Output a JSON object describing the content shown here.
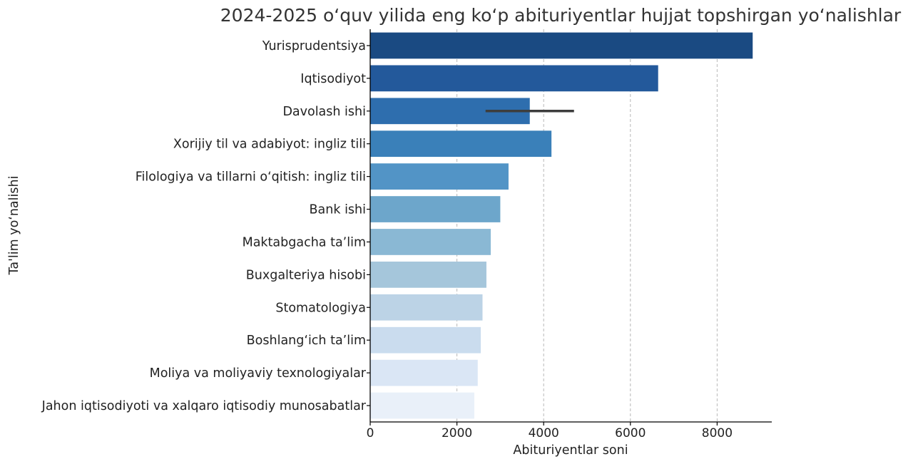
{
  "chart_data": {
    "type": "bar",
    "orientation": "horizontal",
    "title": "2024-2025 o‘quv yilida eng ko‘p abituriyentlar hujjat topshirgan yo‘nalishlar",
    "xlabel": "Abituriyentlar soni",
    "ylabel": "Ta'lim yo‘nalishi",
    "xlim": [
      0,
      9260
    ],
    "xticks": [
      0,
      2000,
      4000,
      6000,
      8000
    ],
    "xtick_labels": [
      "0",
      "2000",
      "4000",
      "6000",
      "8000"
    ],
    "grid": "x dashed",
    "categories": [
      "Yurisprudentsiya",
      "Iqtisodiyot",
      "Davolash ishi",
      "Xorijiy til va adabiyot: ingliz tili",
      "Filologiya va tillarni o‘qitish: ingliz tili",
      "Bank ishi",
      "Maktabgacha ta’lim",
      "Buxgalteriya hisobi",
      "Stomatologiya",
      "Boshlang‘ich ta’lim",
      "Moliya va moliyaviy texnologiyalar",
      "Jahon iqtisodiyoti va xalqaro iqtisodiy munosabatlar"
    ],
    "values": [
      8820,
      6640,
      3680,
      4180,
      3190,
      3000,
      2780,
      2680,
      2590,
      2550,
      2480,
      2400
    ],
    "error_bars": [
      null,
      null,
      [
        2660,
        4700
      ],
      null,
      null,
      null,
      null,
      null,
      null,
      null,
      null,
      null
    ],
    "colors": [
      "#1a4a82",
      "#23599b",
      "#2e6eae",
      "#3a80b9",
      "#5294c6",
      "#6da6cb",
      "#8ab8d4",
      "#a5c6db",
      "#bcd3e6",
      "#cadcee",
      "#dae6f5",
      "#e9f0f9"
    ]
  }
}
